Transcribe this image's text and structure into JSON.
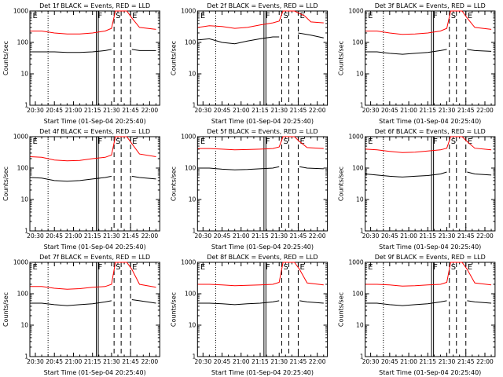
{
  "colors": {
    "events": "#000000",
    "lld": "#ff0000",
    "background": "#ffffff",
    "axis": "#000000"
  },
  "chart_data": [
    {
      "type": "line",
      "title": "Det 1f BLACK = Events, RED = LLD",
      "xlabel": "Start Time (01-Sep-04 20:25:40)",
      "ylabel": "Counts/sec",
      "yscale": "log",
      "ylim": [
        1,
        1000
      ],
      "xticks": [
        "20:30",
        "20:45",
        "21:00",
        "21:15",
        "21:30",
        "21:45",
        "22:00"
      ],
      "yticks": [
        "1",
        "10",
        "100",
        "1000"
      ],
      "markers": {
        "E": "20:26",
        "F": "21:18",
        "S": "21:32",
        "E2": "21:45"
      },
      "series": [
        {
          "name": "Events",
          "color": "#000000",
          "x": [
            "20:26",
            "20:35",
            "20:45",
            "20:55",
            "21:05",
            "21:15",
            "21:25",
            "21:30",
            "21:38",
            "21:42",
            "21:46",
            "21:52",
            "22:05"
          ],
          "values": [
            50,
            50,
            50,
            48,
            48,
            50,
            55,
            60,
            null,
            null,
            60,
            55,
            55
          ]
        },
        {
          "name": "LLD",
          "color": "#ff0000",
          "x": [
            "20:26",
            "20:35",
            "20:45",
            "20:55",
            "21:05",
            "21:15",
            "21:25",
            "21:30",
            "21:33",
            "21:42",
            "21:46",
            "21:52",
            "22:05"
          ],
          "values": [
            230,
            230,
            200,
            185,
            185,
            200,
            230,
            280,
            1000,
            1000,
            600,
            300,
            260
          ]
        }
      ]
    },
    {
      "type": "line",
      "title": "Det 2f BLACK = Events, RED = LLD",
      "xlabel": "Start Time (01-Sep-04 20:25:40)",
      "ylabel": "Counts/sec",
      "yscale": "log",
      "ylim": [
        1,
        1000
      ],
      "xticks": [
        "20:30",
        "20:45",
        "21:00",
        "21:15",
        "21:30",
        "21:45",
        "22:00"
      ],
      "yticks": [
        "1",
        "10",
        "100",
        "1000"
      ],
      "markers": {
        "E": "20:26",
        "F": "21:18",
        "S": "21:32",
        "E2": "21:45"
      },
      "series": [
        {
          "name": "Events",
          "color": "#000000",
          "x": [
            "20:26",
            "20:35",
            "20:45",
            "20:55",
            "21:05",
            "21:15",
            "21:25",
            "21:30",
            "21:38",
            "21:45",
            "21:55",
            "22:05"
          ],
          "values": [
            120,
            130,
            100,
            90,
            110,
            130,
            150,
            150,
            null,
            200,
            170,
            140
          ]
        },
        {
          "name": "LLD",
          "color": "#ff0000",
          "x": [
            "20:26",
            "20:35",
            "20:45",
            "20:55",
            "21:05",
            "21:15",
            "21:25",
            "21:30",
            "21:33",
            "21:42",
            "21:50",
            "21:55",
            "22:05"
          ],
          "values": [
            300,
            340,
            320,
            280,
            300,
            360,
            420,
            480,
            1000,
            1000,
            700,
            450,
            420
          ]
        }
      ]
    },
    {
      "type": "line",
      "title": "Det 3f BLACK = Events, RED = LLD",
      "xlabel": "Start Time (01-Sep-04 20:25:40)",
      "ylabel": "Counts/sec",
      "yscale": "log",
      "ylim": [
        1,
        1000
      ],
      "xticks": [
        "20:30",
        "20:45",
        "21:00",
        "21:15",
        "21:30",
        "21:45",
        "22:00"
      ],
      "yticks": [
        "1",
        "10",
        "100",
        "1000"
      ],
      "markers": {
        "E": "20:26",
        "F": "21:18",
        "S": "21:32",
        "E2": "21:45"
      },
      "series": [
        {
          "name": "Events",
          "color": "#000000",
          "x": [
            "20:26",
            "20:35",
            "20:45",
            "20:55",
            "21:05",
            "21:15",
            "21:25",
            "21:30",
            "21:38",
            "21:42",
            "21:46",
            "21:52",
            "22:05"
          ],
          "values": [
            50,
            50,
            45,
            42,
            45,
            48,
            55,
            60,
            null,
            null,
            60,
            55,
            52
          ]
        },
        {
          "name": "LLD",
          "color": "#ff0000",
          "x": [
            "20:26",
            "20:35",
            "20:45",
            "20:55",
            "21:05",
            "21:15",
            "21:25",
            "21:30",
            "21:33",
            "21:42",
            "21:46",
            "21:52",
            "22:05"
          ],
          "values": [
            230,
            230,
            200,
            180,
            185,
            200,
            230,
            280,
            1000,
            1000,
            600,
            300,
            260
          ]
        }
      ]
    },
    {
      "type": "line",
      "title": "Det 4f BLACK = Events, RED = LLD",
      "xlabel": "Start Time (01-Sep-04 20:25:40)",
      "ylabel": "Counts/sec",
      "yscale": "log",
      "ylim": [
        1,
        1000
      ],
      "xticks": [
        "20:30",
        "20:45",
        "21:00",
        "21:15",
        "21:30",
        "21:45",
        "22:00"
      ],
      "yticks": [
        "1",
        "10",
        "100",
        "1000"
      ],
      "markers": {
        "E": "20:26",
        "F": "21:18",
        "S": "21:32",
        "E2": "21:45"
      },
      "series": [
        {
          "name": "Events",
          "color": "#000000",
          "x": [
            "20:26",
            "20:35",
            "20:45",
            "20:55",
            "21:05",
            "21:15",
            "21:25",
            "21:30",
            "21:38",
            "21:42",
            "21:46",
            "21:52",
            "22:05"
          ],
          "values": [
            50,
            48,
            40,
            38,
            40,
            45,
            50,
            55,
            null,
            null,
            55,
            50,
            45
          ]
        },
        {
          "name": "LLD",
          "color": "#ff0000",
          "x": [
            "20:26",
            "20:35",
            "20:45",
            "20:55",
            "21:05",
            "21:15",
            "21:25",
            "21:30",
            "21:33",
            "21:42",
            "21:46",
            "21:52",
            "22:05"
          ],
          "values": [
            230,
            220,
            180,
            170,
            175,
            200,
            220,
            260,
            1000,
            1000,
            600,
            280,
            230
          ]
        }
      ]
    },
    {
      "type": "line",
      "title": "Det 5f BLACK = Events, RED = LLD",
      "xlabel": "Start Time (01-Sep-04 20:25:40)",
      "ylabel": "Counts/sec",
      "yscale": "log",
      "ylim": [
        1,
        1000
      ],
      "xticks": [
        "20:30",
        "20:45",
        "21:00",
        "21:15",
        "21:30",
        "21:45",
        "22:00"
      ],
      "yticks": [
        "1",
        "10",
        "100",
        "1000"
      ],
      "markers": {
        "E": "20:26",
        "F": "21:18",
        "S": "21:32",
        "E2": "21:45"
      },
      "series": [
        {
          "name": "Events",
          "color": "#000000",
          "x": [
            "20:26",
            "20:35",
            "20:45",
            "20:55",
            "21:05",
            "21:15",
            "21:25",
            "21:30",
            "21:38",
            "21:42",
            "21:46",
            "21:52",
            "22:05"
          ],
          "values": [
            100,
            100,
            92,
            88,
            90,
            95,
            100,
            110,
            null,
            null,
            110,
            100,
            95
          ]
        },
        {
          "name": "LLD",
          "color": "#ff0000",
          "x": [
            "20:26",
            "20:35",
            "20:45",
            "20:55",
            "21:05",
            "21:15",
            "21:25",
            "21:30",
            "21:33",
            "21:42",
            "21:46",
            "21:52",
            "22:05"
          ],
          "values": [
            420,
            420,
            400,
            380,
            390,
            400,
            420,
            470,
            1000,
            1000,
            700,
            450,
            420
          ]
        }
      ]
    },
    {
      "type": "line",
      "title": "Det 6f BLACK = Events, RED = LLD",
      "xlabel": "Start Time (01-Sep-04 20:25:40)",
      "ylabel": "Counts/sec",
      "yscale": "log",
      "ylim": [
        1,
        1000
      ],
      "xticks": [
        "20:30",
        "20:45",
        "21:00",
        "21:15",
        "21:30",
        "21:45",
        "22:00"
      ],
      "yticks": [
        "1",
        "10",
        "100",
        "1000"
      ],
      "markers": {
        "E": "20:26",
        "F": "21:18",
        "S": "21:32",
        "E2": "21:45"
      },
      "series": [
        {
          "name": "Events",
          "color": "#000000",
          "x": [
            "20:26",
            "20:35",
            "20:45",
            "20:55",
            "21:05",
            "21:15",
            "21:25",
            "21:30",
            "21:38",
            "21:42",
            "21:46",
            "21:52",
            "22:05"
          ],
          "values": [
            65,
            60,
            55,
            52,
            55,
            58,
            65,
            75,
            null,
            null,
            75,
            65,
            60
          ]
        },
        {
          "name": "LLD",
          "color": "#ff0000",
          "x": [
            "20:26",
            "20:35",
            "20:45",
            "20:55",
            "21:05",
            "21:15",
            "21:25",
            "21:30",
            "21:33",
            "21:42",
            "21:46",
            "21:52",
            "22:05"
          ],
          "values": [
            400,
            380,
            340,
            310,
            320,
            350,
            380,
            430,
            1000,
            1000,
            700,
            430,
            380
          ]
        }
      ]
    },
    {
      "type": "line",
      "title": "Det 7f BLACK = Events, RED = LLD",
      "xlabel": "Start Time (01-Sep-04 20:25:40)",
      "ylabel": "Counts/sec",
      "yscale": "log",
      "ylim": [
        1,
        1000
      ],
      "xticks": [
        "20:30",
        "20:45",
        "21:00",
        "21:15",
        "21:30",
        "21:45",
        "22:00"
      ],
      "yticks": [
        "1",
        "10",
        "100",
        "1000"
      ],
      "markers": {
        "E": "20:26",
        "F": "21:18",
        "S": "21:32",
        "E2": "21:45"
      },
      "series": [
        {
          "name": "Events",
          "color": "#000000",
          "x": [
            "20:26",
            "20:35",
            "20:45",
            "20:55",
            "21:05",
            "21:15",
            "21:25",
            "21:30",
            "21:38",
            "21:42",
            "21:46",
            "21:52",
            "22:05"
          ],
          "values": [
            50,
            50,
            45,
            42,
            45,
            48,
            55,
            60,
            null,
            null,
            65,
            60,
            50
          ]
        },
        {
          "name": "LLD",
          "color": "#ff0000",
          "x": [
            "20:26",
            "20:35",
            "20:45",
            "20:55",
            "21:05",
            "21:15",
            "21:25",
            "21:30",
            "21:33",
            "21:42",
            "21:46",
            "21:52",
            "22:05"
          ],
          "values": [
            170,
            170,
            150,
            140,
            145,
            160,
            170,
            200,
            1000,
            1000,
            600,
            200,
            160
          ]
        }
      ]
    },
    {
      "type": "line",
      "title": "Det 8f BLACK = Events, RED = LLD",
      "xlabel": "Start Time (01-Sep-04 20:25:40)",
      "ylabel": "Counts/sec",
      "yscale": "log",
      "ylim": [
        1,
        1000
      ],
      "xticks": [
        "20:30",
        "20:45",
        "21:00",
        "21:15",
        "21:30",
        "21:45",
        "22:00"
      ],
      "yticks": [
        "1",
        "10",
        "100",
        "1000"
      ],
      "markers": {
        "E": "20:26",
        "F": "21:18",
        "S": "21:32",
        "E2": "21:45"
      },
      "series": [
        {
          "name": "Events",
          "color": "#000000",
          "x": [
            "20:26",
            "20:35",
            "20:45",
            "20:55",
            "21:05",
            "21:15",
            "21:25",
            "21:30",
            "21:38",
            "21:42",
            "21:46",
            "21:52",
            "22:05"
          ],
          "values": [
            50,
            50,
            48,
            45,
            48,
            50,
            55,
            60,
            null,
            null,
            60,
            55,
            50
          ]
        },
        {
          "name": "LLD",
          "color": "#ff0000",
          "x": [
            "20:26",
            "20:35",
            "20:45",
            "20:55",
            "21:05",
            "21:15",
            "21:25",
            "21:30",
            "21:33",
            "21:42",
            "21:46",
            "21:52",
            "22:05"
          ],
          "values": [
            200,
            200,
            190,
            180,
            185,
            190,
            200,
            230,
            1000,
            1000,
            600,
            220,
            190
          ]
        }
      ]
    },
    {
      "type": "line",
      "title": "Det 9f BLACK = Events, RED = LLD",
      "xlabel": "Start Time (01-Sep-04 20:25:40)",
      "ylabel": "Counts/sec",
      "yscale": "log",
      "ylim": [
        1,
        1000
      ],
      "xticks": [
        "20:30",
        "20:45",
        "21:00",
        "21:15",
        "21:30",
        "21:45",
        "22:00"
      ],
      "yticks": [
        "1",
        "10",
        "100",
        "1000"
      ],
      "markers": {
        "E": "20:26",
        "F": "21:18",
        "S": "21:32",
        "E2": "21:45"
      },
      "series": [
        {
          "name": "Events",
          "color": "#000000",
          "x": [
            "20:26",
            "20:35",
            "20:45",
            "20:55",
            "21:05",
            "21:15",
            "21:25",
            "21:30",
            "21:38",
            "21:42",
            "21:46",
            "21:52",
            "22:05"
          ],
          "values": [
            50,
            50,
            45,
            42,
            45,
            48,
            55,
            60,
            null,
            null,
            60,
            55,
            50
          ]
        },
        {
          "name": "LLD",
          "color": "#ff0000",
          "x": [
            "20:26",
            "20:35",
            "20:45",
            "20:55",
            "21:05",
            "21:15",
            "21:25",
            "21:30",
            "21:33",
            "21:42",
            "21:46",
            "21:52",
            "22:05"
          ],
          "values": [
            200,
            200,
            190,
            175,
            180,
            190,
            200,
            230,
            1000,
            1000,
            600,
            220,
            190
          ]
        }
      ]
    }
  ]
}
